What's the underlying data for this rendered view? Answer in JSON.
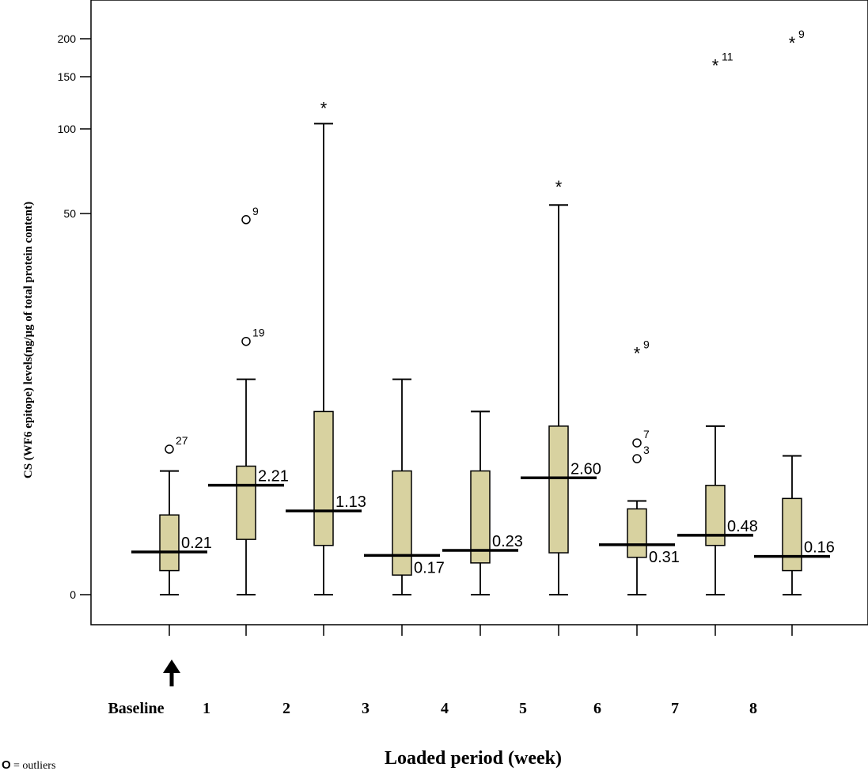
{
  "chart_data": {
    "type": "box",
    "ylabel": "CS (WF6 epitope) levels(ng/μg of total protein content)",
    "xlabel": "Loaded period (week)",
    "y_ticks": [
      0,
      50,
      100,
      150,
      200
    ],
    "categories": [
      "Baseline",
      "1",
      "2",
      "3",
      "4",
      "5",
      "6",
      "7",
      "8"
    ],
    "legend_note": {
      "symbol": "O",
      "text": "= outliers"
    },
    "grid": false,
    "boxes": [
      {
        "whisker_low": 0,
        "q1": 0.05,
        "median": 0.21,
        "q3": 1.0,
        "whisker_high": 3.0,
        "median_label": "0.21",
        "outliers": [
          {
            "value": 4.5,
            "marker": "circle",
            "label": "27"
          }
        ]
      },
      {
        "whisker_low": 0,
        "q1": 0.4,
        "median": 2.21,
        "q3": 3.3,
        "whisker_high": 12.0,
        "median_label": "2.21",
        "outliers": [
          {
            "value": 48,
            "marker": "circle",
            "label": "9"
          },
          {
            "value": 18,
            "marker": "circle",
            "label": "19"
          }
        ]
      },
      {
        "whisker_low": 0,
        "q1": 0.3,
        "median": 1.13,
        "q3": 8.0,
        "whisker_high": 105,
        "median_label": "1.13",
        "outliers": [
          {
            "value": 120,
            "marker": "star",
            "label": ""
          }
        ]
      },
      {
        "whisker_low": 0,
        "q1": 0.03,
        "median": 0.17,
        "q3": 3.0,
        "whisker_high": 12.0,
        "median_label": "0.17",
        "outliers": []
      },
      {
        "whisker_low": 0,
        "q1": 0.1,
        "median": 0.23,
        "q3": 3.0,
        "whisker_high": 8.0,
        "median_label": "0.23",
        "outliers": []
      },
      {
        "whisker_low": 0,
        "q1": 0.2,
        "median": 2.6,
        "q3": 6.5,
        "whisker_high": 55,
        "median_label": "2.60",
        "outliers": [
          {
            "value": 66,
            "marker": "star",
            "label": ""
          }
        ]
      },
      {
        "whisker_low": 0,
        "q1": 0.15,
        "median": 0.31,
        "q3": 1.2,
        "whisker_high": 1.5,
        "median_label": "0.31",
        "outliers": [
          {
            "value": 16,
            "marker": "star",
            "label": "9"
          },
          {
            "value": 5.0,
            "marker": "circle",
            "label": "7"
          },
          {
            "value": 3.8,
            "marker": "circle",
            "label": "3"
          }
        ]
      },
      {
        "whisker_low": 0,
        "q1": 0.3,
        "median": 0.48,
        "q3": 2.2,
        "whisker_high": 6.5,
        "median_label": "0.48",
        "outliers": [
          {
            "value": 165,
            "marker": "star",
            "label": "11"
          }
        ]
      },
      {
        "whisker_low": 0,
        "q1": 0.05,
        "median": 0.16,
        "q3": 1.6,
        "whisker_high": 4.0,
        "median_label": "0.16",
        "outliers": [
          {
            "value": 195,
            "marker": "star",
            "label": "9"
          }
        ]
      }
    ]
  }
}
